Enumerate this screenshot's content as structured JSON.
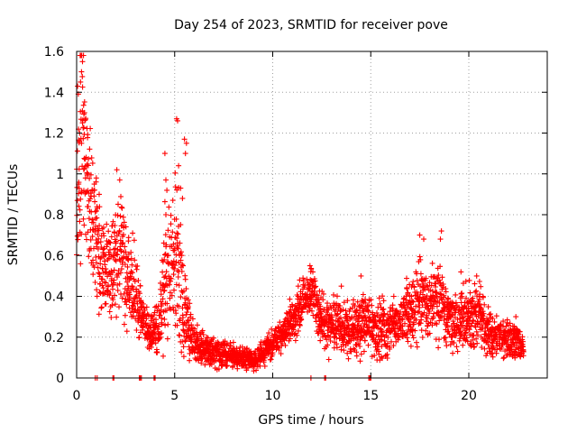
{
  "chart_data": {
    "type": "scatter",
    "title": "Day 254 of 2023, SRMTID for receiver pove",
    "xlabel": "GPS time / hours",
    "ylabel": "SRMTID / TECUs",
    "xlim": [
      0,
      24
    ],
    "ylim": [
      0,
      1.6
    ],
    "xticks": [
      0,
      5,
      10,
      15,
      20
    ],
    "xtick_labels": [
      "0",
      "5",
      "10",
      "15",
      "20"
    ],
    "yticks": [
      0,
      0.2,
      0.4,
      0.6,
      0.8,
      1,
      1.2,
      1.4,
      1.6
    ],
    "ytick_labels": [
      "0",
      "0.2",
      "0.4",
      "0.6",
      "0.8",
      "1",
      "1.2",
      "1.4",
      "1.6"
    ],
    "grid": true,
    "marker": "+",
    "series": [
      {
        "name": "SRMTID",
        "color": "#ff0000",
        "profile": [
          [
            0.0,
            0.8,
            0.4
          ],
          [
            0.2,
            1.1,
            0.45
          ],
          [
            0.35,
            1.2,
            0.35
          ],
          [
            0.5,
            1.0,
            0.3
          ],
          [
            0.7,
            0.85,
            0.3
          ],
          [
            1.0,
            0.7,
            0.25
          ],
          [
            1.3,
            0.5,
            0.15
          ],
          [
            2.0,
            0.55,
            0.2
          ],
          [
            2.3,
            0.62,
            0.25
          ],
          [
            2.6,
            0.5,
            0.18
          ],
          [
            3.0,
            0.42,
            0.15
          ],
          [
            3.4,
            0.28,
            0.08
          ],
          [
            3.8,
            0.22,
            0.08
          ],
          [
            4.2,
            0.25,
            0.1
          ],
          [
            4.5,
            0.5,
            0.25
          ],
          [
            4.8,
            0.55,
            0.25
          ],
          [
            5.1,
            0.6,
            0.35
          ],
          [
            5.5,
            0.3,
            0.15
          ],
          [
            6.0,
            0.18,
            0.07
          ],
          [
            6.5,
            0.14,
            0.05
          ],
          [
            7.0,
            0.13,
            0.05
          ],
          [
            7.5,
            0.12,
            0.05
          ],
          [
            8.0,
            0.11,
            0.04
          ],
          [
            8.5,
            0.1,
            0.04
          ],
          [
            9.0,
            0.09,
            0.04
          ],
          [
            9.5,
            0.12,
            0.05
          ],
          [
            10.0,
            0.17,
            0.05
          ],
          [
            10.5,
            0.22,
            0.06
          ],
          [
            11.0,
            0.28,
            0.08
          ],
          [
            11.5,
            0.35,
            0.1
          ],
          [
            12.0,
            0.42,
            0.08
          ],
          [
            12.5,
            0.28,
            0.1
          ],
          [
            13.0,
            0.27,
            0.1
          ],
          [
            13.5,
            0.26,
            0.1
          ],
          [
            14.0,
            0.24,
            0.1
          ],
          [
            14.5,
            0.26,
            0.1
          ],
          [
            15.0,
            0.25,
            0.1
          ],
          [
            15.5,
            0.24,
            0.1
          ],
          [
            16.0,
            0.25,
            0.1
          ],
          [
            16.5,
            0.28,
            0.1
          ],
          [
            17.0,
            0.32,
            0.12
          ],
          [
            17.5,
            0.4,
            0.15
          ],
          [
            18.0,
            0.35,
            0.12
          ],
          [
            18.5,
            0.38,
            0.15
          ],
          [
            19.0,
            0.28,
            0.1
          ],
          [
            19.5,
            0.26,
            0.1
          ],
          [
            20.0,
            0.3,
            0.12
          ],
          [
            20.5,
            0.3,
            0.12
          ],
          [
            21.0,
            0.22,
            0.08
          ],
          [
            21.5,
            0.2,
            0.07
          ],
          [
            22.0,
            0.2,
            0.07
          ],
          [
            22.5,
            0.18,
            0.06
          ],
          [
            22.8,
            0.15,
            0.04
          ]
        ],
        "outliers": [
          [
            0.3,
            1.55
          ],
          [
            0.35,
            1.58
          ],
          [
            0.25,
            1.5
          ],
          [
            0.2,
            1.45
          ],
          [
            0.05,
            1.43
          ],
          [
            0.4,
            1.3
          ],
          [
            0.3,
            1.25
          ],
          [
            0.15,
            1.2
          ],
          [
            0.25,
            1.15
          ],
          [
            1.0,
            0.98
          ],
          [
            0.9,
            0.95
          ],
          [
            1.15,
            0.9
          ],
          [
            2.05,
            1.02
          ],
          [
            2.2,
            0.97
          ],
          [
            5.1,
            1.27
          ],
          [
            5.15,
            1.26
          ],
          [
            5.5,
            1.17
          ],
          [
            5.6,
            1.15
          ],
          [
            5.55,
            1.1
          ],
          [
            4.5,
            1.1
          ],
          [
            5.2,
            1.04
          ],
          [
            4.55,
            0.97
          ],
          [
            5.3,
            0.93
          ],
          [
            4.6,
            0.92
          ],
          [
            5.4,
            0.88
          ],
          [
            4.55,
            0.8
          ],
          [
            17.5,
            0.7
          ],
          [
            17.7,
            0.68
          ],
          [
            18.6,
            0.72
          ],
          [
            18.55,
            0.68
          ],
          [
            11.9,
            0.55
          ],
          [
            14.5,
            0.5
          ],
          [
            20.4,
            0.5
          ],
          [
            19.6,
            0.52
          ],
          [
            22.4,
            0.3
          ],
          [
            13.5,
            0.45
          ],
          [
            0.1,
            0.95
          ],
          [
            0.45,
            0.98
          ]
        ],
        "zeros": [
          0.95,
          1.05,
          1.85,
          1.9,
          3.2,
          3.25,
          3.3,
          3.95,
          4.0,
          11.95,
          12.65,
          12.7,
          14.9,
          14.95,
          15.0
        ]
      }
    ]
  }
}
